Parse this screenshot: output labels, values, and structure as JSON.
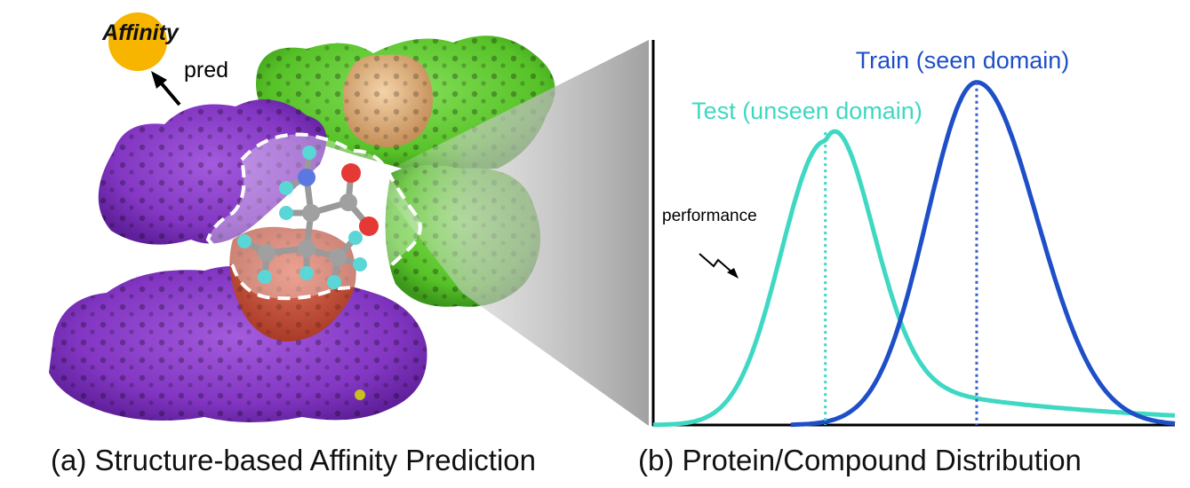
{
  "panel_a": {
    "caption": "(a) Structure-based Affinity Prediction",
    "affinity_label": "Affinity",
    "pred_label": "pred",
    "colors": {
      "affinity_circle": "#F7B500",
      "protein_purple": "#8E3FC8",
      "protein_green": "#5FCB2E",
      "protein_tan": "#E2B585",
      "pocket_red": "#C8553E",
      "atom_carbon": "#9A9A9A",
      "atom_hydrogen": "#5BD6D6",
      "atom_oxygen": "#E53935",
      "atom_nitrogen": "#5A78E0"
    }
  },
  "panel_b": {
    "caption": "(b) Protein/Compound Distribution",
    "performance_label": "performance",
    "chart_data": {
      "type": "line",
      "series": [
        {
          "name": "Test (unseen domain)",
          "color": "#3ED8C3",
          "peak_x": 0.33,
          "peak_y": 0.76,
          "shape": "right-skewed bell"
        },
        {
          "name": "Train (seen domain)",
          "color": "#1E4FC8",
          "peak_x": 0.62,
          "peak_y": 0.89,
          "shape": "bell"
        }
      ],
      "mean_lines": "dotted vertical at each peak",
      "xlabel": "",
      "ylabel": "",
      "grid": false
    }
  }
}
